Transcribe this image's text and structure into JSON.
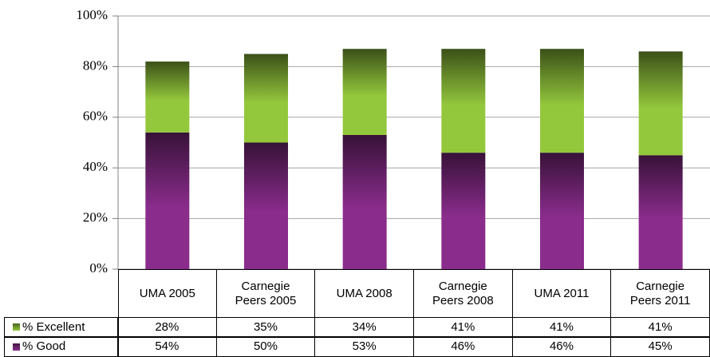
{
  "chart_data": {
    "type": "stacked_bar",
    "categories": [
      "UMA 2005",
      "Carnegie Peers 2005",
      "UMA 2008",
      "Carnegie Peers 2008",
      "UMA 2011",
      "Carnegie Peers 2011"
    ],
    "series": [
      {
        "name": "% Good",
        "color": "#8a2c8c",
        "values": [
          54,
          50,
          53,
          46,
          46,
          45
        ],
        "value_labels": [
          "54%",
          "50%",
          "53%",
          "46%",
          "46%",
          "45%"
        ]
      },
      {
        "name": "% Excellent",
        "color": "#94c83c",
        "values": [
          28,
          35,
          34,
          41,
          41,
          41
        ],
        "value_labels": [
          "28%",
          "35%",
          "34%",
          "41%",
          "41%",
          "41%"
        ]
      }
    ],
    "ylim": [
      0,
      100
    ],
    "yticks": [
      {
        "value": 0,
        "label": "0%"
      },
      {
        "value": 20,
        "label": "20%"
      },
      {
        "value": 40,
        "label": "40%"
      },
      {
        "value": 60,
        "label": "60%"
      },
      {
        "value": 80,
        "label": "80%"
      },
      {
        "value": 100,
        "label": "100%"
      }
    ],
    "grid": true
  }
}
